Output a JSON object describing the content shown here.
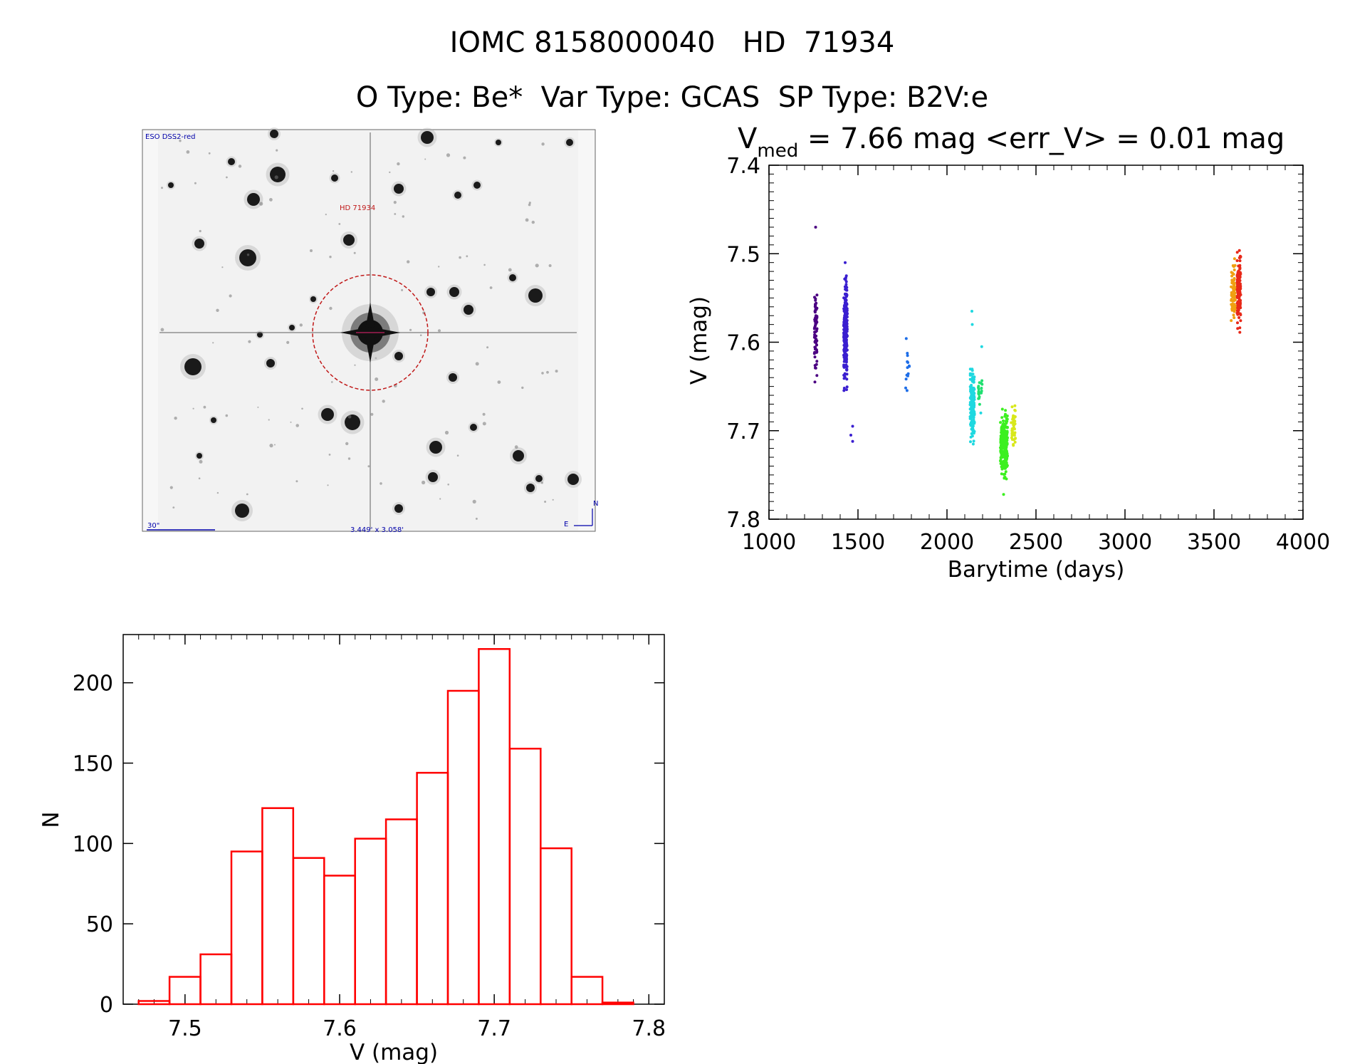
{
  "header": {
    "line1": "IOMC 8158000040   HD  71934",
    "line2": "O Type: Be*  Var Type: GCAS  SP Type: B2V:e"
  },
  "finder": {
    "survey_label": "ESO DSS2-red",
    "star_label": "HD 71934",
    "scale_label": "30\"",
    "fov_label": "3.449' x 3.058'",
    "north_label": "N",
    "east_label": "E"
  },
  "chart_data": [
    {
      "type": "scatter",
      "title_main": "V",
      "title_sub": "med",
      "title_rest": " = 7.66 mag <err_V> = 0.01 mag",
      "xlabel": "Barytime (days)",
      "ylabel": "V (mag)",
      "xlim": [
        1000,
        4000
      ],
      "ylim": [
        7.8,
        7.4
      ],
      "y_inverted": true,
      "xticks": [
        1000,
        1500,
        2000,
        2500,
        3000,
        3500,
        4000
      ],
      "yticks": [
        7.4,
        7.5,
        7.6,
        7.7,
        7.8
      ],
      "ytick_labels": [
        "7.4",
        "7.5",
        "7.6",
        "7.7",
        "7.8"
      ],
      "groups": [
        {
          "color": "#4b0082",
          "x_range": [
            1255,
            1270
          ],
          "y_range": [
            7.52,
            7.65
          ],
          "n": 70,
          "extra": [
            [
              1262,
              7.47
            ],
            [
              1258,
              7.645
            ]
          ]
        },
        {
          "color": "#3a1fd0",
          "x_range": [
            1420,
            1440
          ],
          "y_range": [
            7.51,
            7.665
          ],
          "n": 260,
          "extra": [
            [
              1428,
              7.51
            ],
            [
              1470,
              7.695
            ],
            [
              1470,
              7.712
            ],
            [
              1460,
              7.705
            ]
          ]
        },
        {
          "color": "#1e6ee8",
          "x_range": [
            1765,
            1790
          ],
          "y_range": [
            7.585,
            7.685
          ],
          "n": 14,
          "extra": []
        },
        {
          "color": "#1fd8e0",
          "x_range": [
            2130,
            2155
          ],
          "y_range": [
            7.615,
            7.725
          ],
          "n": 160,
          "extra": [
            [
              2140,
              7.565
            ],
            [
              2142,
              7.58
            ],
            [
              2195,
              7.605
            ],
            [
              2190,
              7.68
            ]
          ]
        },
        {
          "color": "#20e070",
          "x_range": [
            2170,
            2200
          ],
          "y_range": [
            7.63,
            7.68
          ],
          "n": 18,
          "extra": []
        },
        {
          "color": "#3cf020",
          "x_range": [
            2300,
            2340
          ],
          "y_range": [
            7.665,
            7.765
          ],
          "n": 240,
          "extra": [
            [
              2318,
              7.772
            ]
          ]
        },
        {
          "color": "#d8e81a",
          "x_range": [
            2360,
            2385
          ],
          "y_range": [
            7.665,
            7.73
          ],
          "n": 40,
          "extra": []
        },
        {
          "color": "#f0a010",
          "x_range": [
            3595,
            3620
          ],
          "y_range": [
            7.5,
            7.585
          ],
          "n": 70,
          "extra": []
        },
        {
          "color": "#e82818",
          "x_range": [
            3630,
            3650
          ],
          "y_range": [
            7.485,
            7.6
          ],
          "n": 150,
          "extra": []
        }
      ]
    },
    {
      "type": "bar",
      "xlabel": "V (mag)",
      "ylabel": "N",
      "xlim": [
        7.46,
        7.81
      ],
      "ylim": [
        0,
        230
      ],
      "xticks": [
        7.5,
        7.6,
        7.7,
        7.8
      ],
      "xtick_labels": [
        "7.5",
        "7.6",
        "7.7",
        "7.8"
      ],
      "yticks": [
        0,
        50,
        100,
        150,
        200
      ],
      "ytick_labels": [
        "0",
        "50",
        "100",
        "150",
        "200"
      ],
      "bin_width": 0.02,
      "bin_starts": [
        7.47,
        7.49,
        7.51,
        7.53,
        7.55,
        7.57,
        7.59,
        7.61,
        7.63,
        7.65,
        7.67,
        7.69,
        7.71,
        7.73,
        7.75,
        7.77
      ],
      "values": [
        2,
        17,
        31,
        95,
        122,
        91,
        80,
        103,
        115,
        144,
        195,
        221,
        159,
        97,
        17,
        1
      ],
      "color": "#ff0000"
    }
  ]
}
